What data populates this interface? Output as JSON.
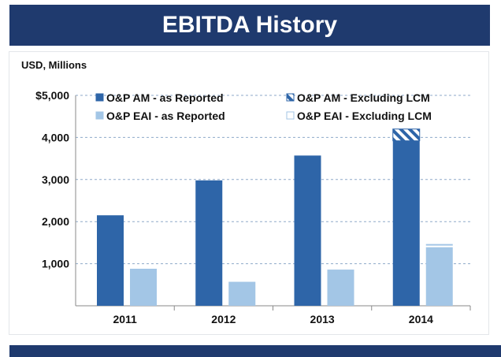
{
  "title": "EBITDA History",
  "chart_data": {
    "type": "bar",
    "unit_label": "USD, Millions",
    "categories": [
      "2011",
      "2012",
      "2013",
      "2014"
    ],
    "ylim": [
      0,
      5000
    ],
    "yticks": [
      {
        "value": 1000,
        "label": "1,000"
      },
      {
        "value": 2000,
        "label": "2,000"
      },
      {
        "value": 3000,
        "label": "3,000"
      },
      {
        "value": 4000,
        "label": "4,000"
      },
      {
        "value": 5000,
        "label": "$5,000"
      }
    ],
    "grid": true,
    "legend_position": "top",
    "series": [
      {
        "name": "O&P AM - as Reported",
        "color": "#2e65a8",
        "values": [
          2150,
          2980,
          3570,
          3920
        ],
        "excluding_lcm": {
          "name": "O&P AM - Excluding LCM",
          "values": [
            null,
            null,
            null,
            4200
          ]
        }
      },
      {
        "name": "O&P EAI - as Reported",
        "color": "#a3c6e6",
        "values": [
          880,
          570,
          860,
          1400
        ],
        "excluding_lcm": {
          "name": "O&P EAI - Excluding LCM",
          "values": [
            null,
            null,
            null,
            1430
          ]
        }
      }
    ]
  }
}
